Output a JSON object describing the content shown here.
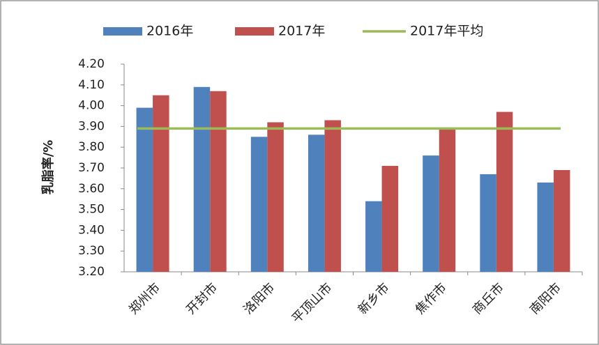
{
  "chart_data": {
    "type": "bar",
    "y_label": "乳脂率/%",
    "categories": [
      "郑州市",
      "开封市",
      "洛阳市",
      "平顶山市",
      "新乡市",
      "焦作市",
      "商丘市",
      "南阳市"
    ],
    "series": [
      {
        "name": "2016年",
        "color": "#4f81bd",
        "values": [
          3.99,
          4.09,
          3.85,
          3.86,
          3.54,
          3.76,
          3.67,
          3.63
        ]
      },
      {
        "name": "2017年",
        "color": "#c0504d",
        "values": [
          4.05,
          4.07,
          3.92,
          3.93,
          3.71,
          3.89,
          3.97,
          3.69
        ]
      },
      {
        "name": "2017年平均",
        "color": "#9bbb59",
        "type": "line",
        "values": [
          3.89,
          3.89,
          3.89,
          3.89,
          3.89,
          3.89,
          3.89,
          3.89
        ]
      }
    ],
    "ylim": [
      3.2,
      4.2
    ],
    "yticks": [
      {
        "value": 3.2,
        "label": "3.20"
      },
      {
        "value": 3.3,
        "label": "3.30"
      },
      {
        "value": 3.4,
        "label": "3.40"
      },
      {
        "value": 3.5,
        "label": "3.50"
      },
      {
        "value": 3.6,
        "label": "3.60"
      },
      {
        "value": 3.7,
        "label": "3.70"
      },
      {
        "value": 3.8,
        "label": "3.80"
      },
      {
        "value": 3.9,
        "label": "3.90"
      },
      {
        "value": 4.0,
        "label": "4.00"
      },
      {
        "value": 4.1,
        "label": "4.10"
      },
      {
        "value": 4.2,
        "label": "4.20"
      }
    ],
    "grid": false
  }
}
